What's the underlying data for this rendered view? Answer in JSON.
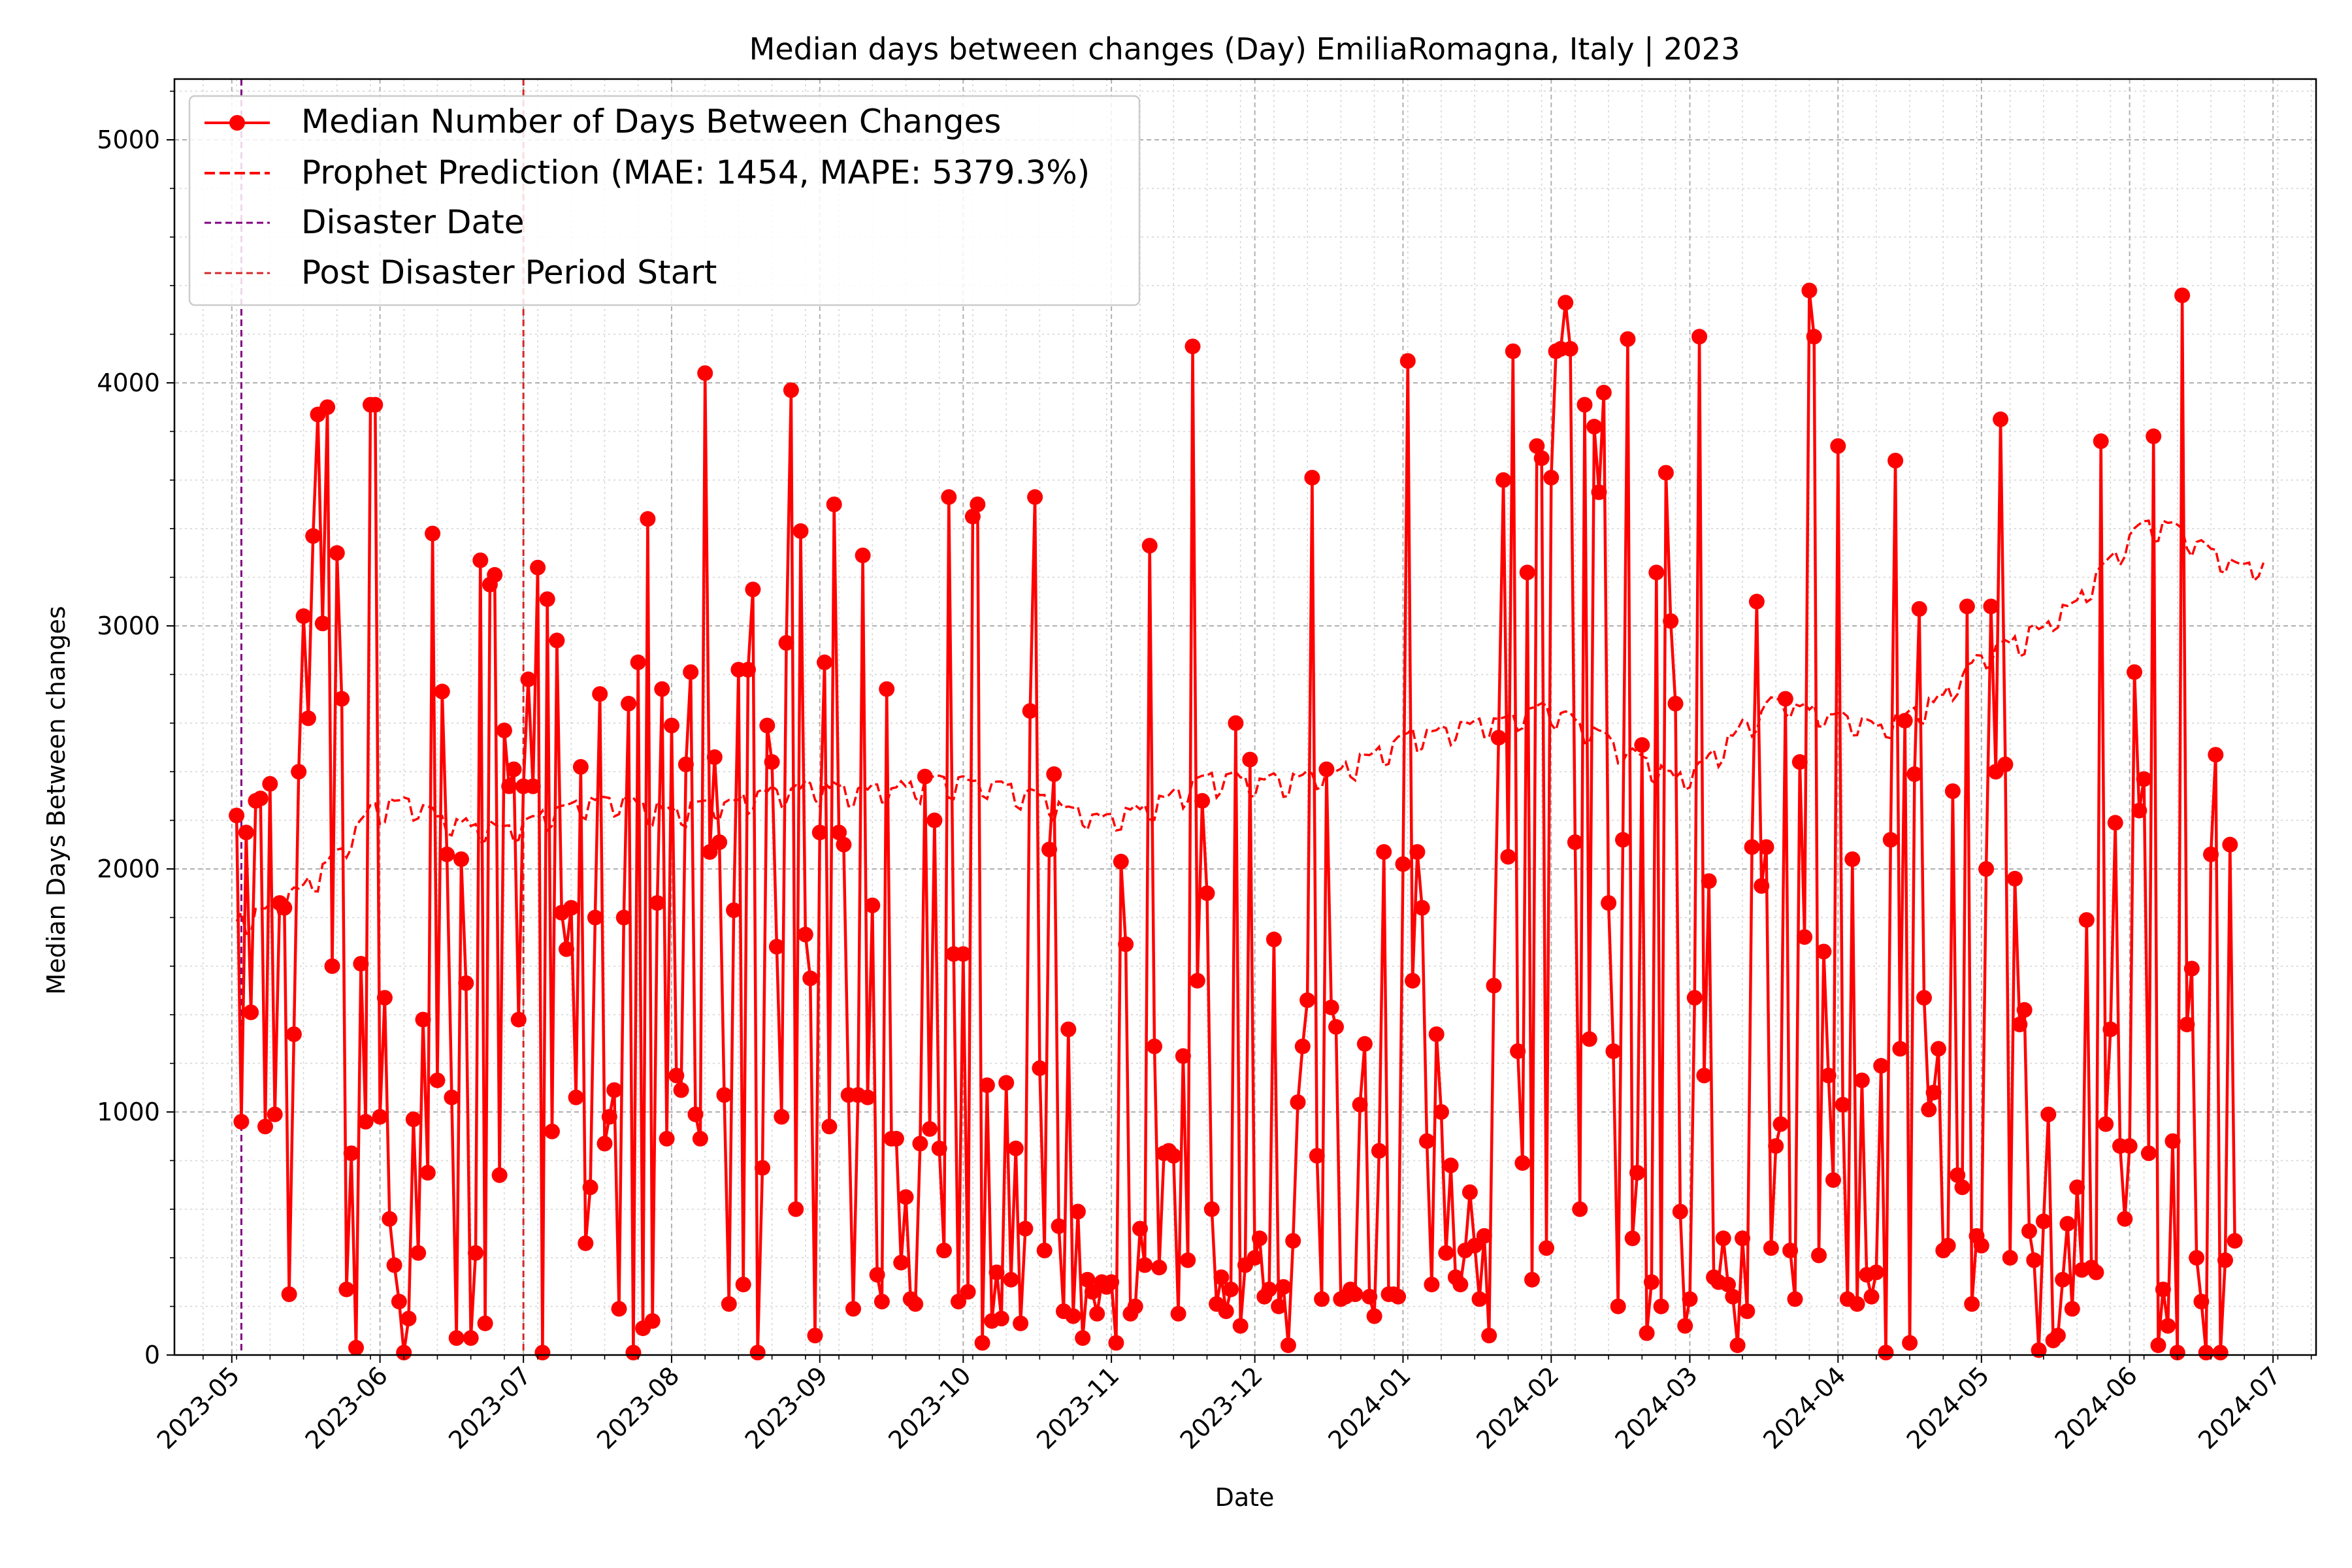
{
  "chart_data": {
    "type": "line",
    "title": "Median days between changes (Day) EmiliaRomagna, Italy | 2023",
    "xlabel": "Date",
    "ylabel": "Median Days Between changes",
    "xlim": [
      "2023-04-19",
      "2024-07-10"
    ],
    "ylim": [
      0,
      5250
    ],
    "x_ticks": [
      "2023-05",
      "2023-06",
      "2023-07",
      "2023-08",
      "2023-09",
      "2023-10",
      "2023-11",
      "2023-12",
      "2024-01",
      "2024-02",
      "2024-03",
      "2024-04",
      "2024-05",
      "2024-06",
      "2024-07"
    ],
    "y_ticks": [
      0,
      1000,
      2000,
      3000,
      4000,
      5000
    ],
    "grid": true,
    "legend_location": "upper-left",
    "x_start": "2023-05-02",
    "x_step_days": 1,
    "series": [
      {
        "name": "Median Number of Days Between Changes",
        "style": "solid line with circle markers",
        "color": "#ff0000",
        "values": [
          2220,
          960,
          2150,
          1410,
          2280,
          2290,
          940,
          2350,
          990,
          1860,
          1840,
          250,
          1320,
          2400,
          3040,
          2620,
          3370,
          3870,
          3010,
          3900,
          1600,
          3300,
          2700,
          270,
          830,
          30,
          1610,
          960,
          3910,
          3910,
          980,
          1470,
          560,
          370,
          220,
          10,
          150,
          970,
          420,
          1380,
          750,
          3380,
          1130,
          2730,
          2060,
          1060,
          70,
          2040,
          1530,
          70,
          420,
          3270,
          130,
          3170,
          3210,
          740,
          2570,
          2340,
          2410,
          1380,
          2340,
          2780,
          2340,
          3240,
          10,
          3110,
          920,
          2940,
          1820,
          1670,
          1840,
          1060,
          2420,
          460,
          690,
          1800,
          2720,
          870,
          980,
          1090,
          190,
          1800,
          2680,
          10,
          2850,
          110,
          3440,
          140,
          1860,
          2740,
          890,
          2590,
          1150,
          1090,
          2430,
          2810,
          990,
          890,
          4040,
          2070,
          2460,
          2110,
          1070,
          210,
          1830,
          2820,
          290,
          2820,
          3150,
          10,
          770,
          2590,
          2440,
          1680,
          980,
          2930,
          3970,
          600,
          3390,
          1730,
          1550,
          80,
          2150,
          2850,
          940,
          3500,
          2150,
          2100,
          1070,
          190,
          1070,
          3290,
          1060,
          1850,
          330,
          220,
          2740,
          890,
          890,
          380,
          650,
          230,
          210,
          870,
          2380,
          930,
          2200,
          850,
          430,
          3530,
          1650,
          220,
          1650,
          260,
          3450,
          3500,
          50,
          1110,
          140,
          340,
          150,
          1120,
          310,
          850,
          130,
          520,
          2650,
          3530,
          1180,
          430,
          2080,
          2390,
          530,
          180,
          1340,
          160,
          590,
          70,
          310,
          260,
          170,
          300,
          280,
          300,
          50,
          2030,
          1690,
          170,
          200,
          520,
          370,
          3330,
          1270,
          360,
          830,
          840,
          820,
          170,
          1230,
          390,
          4150,
          1540,
          2280,
          1900,
          600,
          210,
          320,
          180,
          270,
          2600,
          120,
          370,
          2450,
          400,
          480,
          240,
          270,
          1710,
          200,
          280,
          40,
          470,
          1040,
          1270,
          1460,
          3610,
          820,
          230,
          2410,
          1430,
          1350,
          230,
          240,
          270,
          250,
          1030,
          1280,
          240,
          160,
          840,
          2070,
          250,
          250,
          240,
          2020,
          4090,
          1540,
          2070,
          1840,
          880,
          290,
          1320,
          1000,
          420,
          780,
          320,
          290,
          430,
          670,
          450,
          230,
          490,
          80,
          1520,
          2540,
          3600,
          2050,
          4130,
          1250,
          790,
          3220,
          310,
          3740,
          3690,
          440,
          3610,
          4130,
          4140,
          4330,
          4140,
          2110,
          600,
          3910,
          1300,
          3820,
          3550,
          3960,
          1860,
          1250,
          200,
          2120,
          4180,
          480,
          750,
          2510,
          90,
          300,
          3220,
          200,
          3630,
          3020,
          2680,
          590,
          120,
          230,
          1470,
          4190,
          1150,
          1950,
          320,
          300,
          480,
          290,
          240,
          40,
          480,
          180,
          2090,
          3100,
          1930,
          2090,
          440,
          860,
          950,
          2700,
          430,
          230,
          2440,
          1720,
          4380,
          4190,
          410,
          1660,
          1150,
          720,
          3740,
          1030,
          230,
          2040,
          210,
          1130,
          330,
          240,
          340,
          1190,
          10,
          2120,
          3680,
          1260,
          2610,
          50,
          2390,
          3070,
          1470,
          1010,
          1080,
          1260,
          430,
          450,
          2320,
          740,
          690,
          3080,
          210,
          490,
          450,
          2000,
          3080,
          2400,
          3850,
          2430,
          400,
          1960,
          1360,
          1420,
          510,
          390,
          20,
          550,
          990,
          60,
          80,
          310,
          540,
          190,
          690,
          350,
          1790,
          360,
          340,
          3760,
          950,
          1340,
          2190,
          860,
          560,
          860,
          2810,
          2240,
          2370,
          830,
          3780,
          40,
          270,
          120,
          880,
          10,
          4360,
          1360,
          1590,
          400,
          220,
          10,
          2060,
          2470,
          10,
          390,
          2100,
          470
        ]
      },
      {
        "name": "Prophet Prediction (MAE: 1454, MAPE: 5379.3%)",
        "style": "dashed",
        "color": "#ff0000",
        "knots": [
          [
            "2023-05-02",
            1780
          ],
          [
            "2023-05-09",
            1830
          ],
          [
            "2023-05-16",
            1920
          ],
          [
            "2023-05-23",
            2050
          ],
          [
            "2023-05-30",
            2230
          ],
          [
            "2023-06-06",
            2280
          ],
          [
            "2023-06-13",
            2210
          ],
          [
            "2023-06-20",
            2170
          ],
          [
            "2023-06-27",
            2160
          ],
          [
            "2023-07-04",
            2200
          ],
          [
            "2023-07-11",
            2250
          ],
          [
            "2023-07-18",
            2280
          ],
          [
            "2023-07-25",
            2260
          ],
          [
            "2023-08-01",
            2230
          ],
          [
            "2023-08-08",
            2250
          ],
          [
            "2023-08-15",
            2280
          ],
          [
            "2023-08-22",
            2310
          ],
          [
            "2023-08-29",
            2330
          ],
          [
            "2023-09-05",
            2320
          ],
          [
            "2023-09-12",
            2320
          ],
          [
            "2023-09-19",
            2330
          ],
          [
            "2023-09-26",
            2350
          ],
          [
            "2023-10-03",
            2350
          ],
          [
            "2023-10-10",
            2330
          ],
          [
            "2023-10-17",
            2280
          ],
          [
            "2023-10-24",
            2230
          ],
          [
            "2023-10-31",
            2200
          ],
          [
            "2023-11-07",
            2240
          ],
          [
            "2023-11-14",
            2300
          ],
          [
            "2023-11-21",
            2360
          ],
          [
            "2023-11-28",
            2370
          ],
          [
            "2023-12-05",
            2360
          ],
          [
            "2023-12-12",
            2370
          ],
          [
            "2023-12-19",
            2400
          ],
          [
            "2023-12-26",
            2470
          ],
          [
            "2024-01-02",
            2540
          ],
          [
            "2024-01-09",
            2570
          ],
          [
            "2024-01-16",
            2580
          ],
          [
            "2024-01-23",
            2610
          ],
          [
            "2024-01-30",
            2650
          ],
          [
            "2024-02-06",
            2600
          ],
          [
            "2024-02-13",
            2520
          ],
          [
            "2024-02-20",
            2440
          ],
          [
            "2024-02-27",
            2360
          ],
          [
            "2024-03-05",
            2440
          ],
          [
            "2024-03-12",
            2580
          ],
          [
            "2024-03-19",
            2690
          ],
          [
            "2024-03-26",
            2650
          ],
          [
            "2024-04-02",
            2610
          ],
          [
            "2024-04-09",
            2580
          ],
          [
            "2024-04-16",
            2630
          ],
          [
            "2024-04-23",
            2700
          ],
          [
            "2024-04-30",
            2850
          ],
          [
            "2024-05-07",
            2920
          ],
          [
            "2024-05-14",
            2990
          ],
          [
            "2024-05-21",
            3100
          ],
          [
            "2024-05-28",
            3280
          ],
          [
            "2024-06-04",
            3410
          ],
          [
            "2024-06-11",
            3390
          ],
          [
            "2024-06-18",
            3300
          ],
          [
            "2024-06-25",
            3240
          ],
          [
            "2024-06-29",
            3260
          ]
        ]
      }
    ],
    "vlines": [
      {
        "name": "Disaster Date",
        "date": "2023-05-03",
        "color": "#800080",
        "style": "dashed"
      },
      {
        "name": "Post Disaster Period Start",
        "date": "2023-07-01",
        "color": "#d62728",
        "style": "dashed"
      }
    ]
  }
}
